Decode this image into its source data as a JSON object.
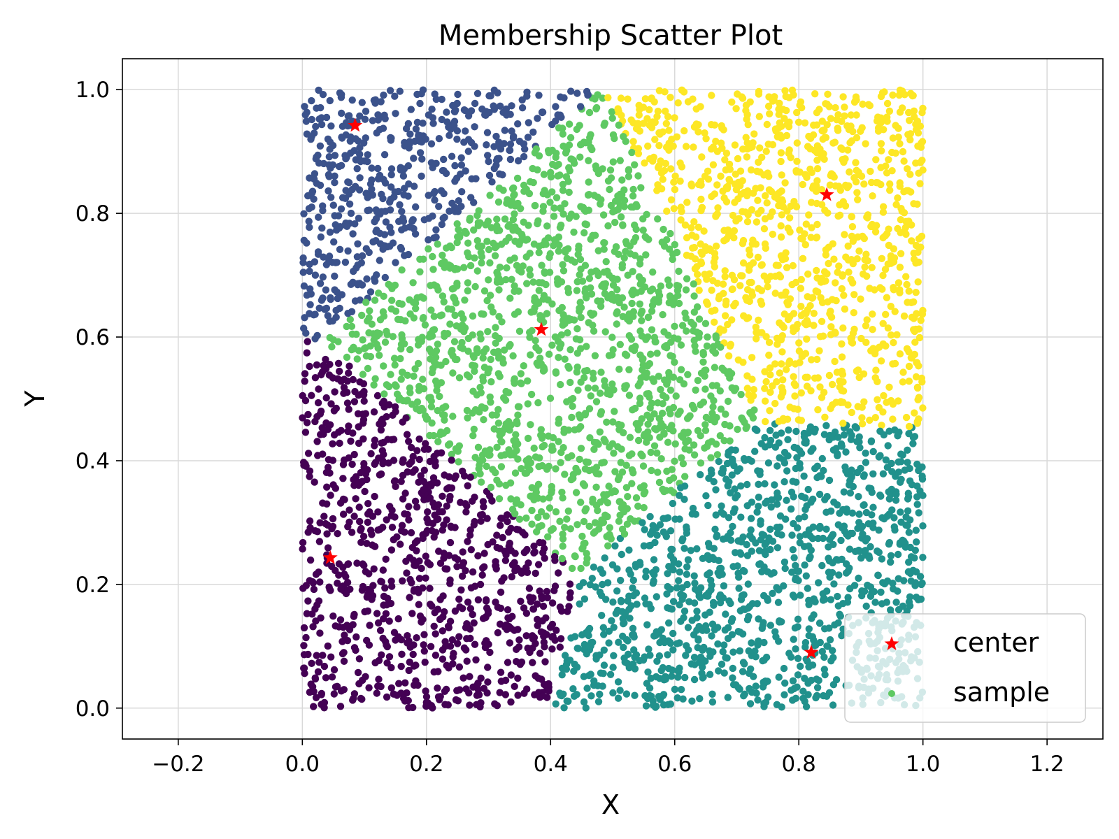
{
  "chart_data": {
    "type": "scatter",
    "title": "Membership Scatter Plot",
    "xlabel": "X",
    "ylabel": "Y",
    "xlim": [
      -0.29,
      1.29
    ],
    "ylim": [
      -0.05,
      1.05
    ],
    "xticks": [
      -0.2,
      0.0,
      0.2,
      0.4,
      0.6,
      0.8,
      1.0,
      1.2
    ],
    "xtick_labels": [
      "−0.2",
      "0.0",
      "0.2",
      "0.4",
      "0.6",
      "0.8",
      "1.0",
      "1.2"
    ],
    "yticks": [
      0.0,
      0.2,
      0.4,
      0.6,
      0.8,
      1.0
    ],
    "ytick_labels": [
      "0.0",
      "0.2",
      "0.4",
      "0.6",
      "0.8",
      "1.0"
    ],
    "grid": true,
    "legend": {
      "placement": "lower-right",
      "entries": [
        {
          "label": "center",
          "marker": "star",
          "color": "#ff0000"
        },
        {
          "label": "sample",
          "marker": "dot",
          "color": "#5ec962"
        }
      ]
    },
    "sample_domain": {
      "x": [
        0.0,
        1.0
      ],
      "y": [
        0.0,
        1.0
      ]
    },
    "sample_count_approx": 5000,
    "series": [
      {
        "name": "center",
        "marker": "star",
        "color": "#ff0000",
        "points": [
          {
            "x": 0.045,
            "y": 0.243
          },
          {
            "x": 0.085,
            "y": 0.942
          },
          {
            "x": 0.385,
            "y": 0.612
          },
          {
            "x": 0.82,
            "y": 0.09
          },
          {
            "x": 0.845,
            "y": 0.83
          }
        ]
      },
      {
        "name": "sample",
        "marker": "dot",
        "cluster_colors": [
          "#440154",
          "#3b528b",
          "#5ec962",
          "#21918c",
          "#fde725"
        ]
      }
    ]
  }
}
